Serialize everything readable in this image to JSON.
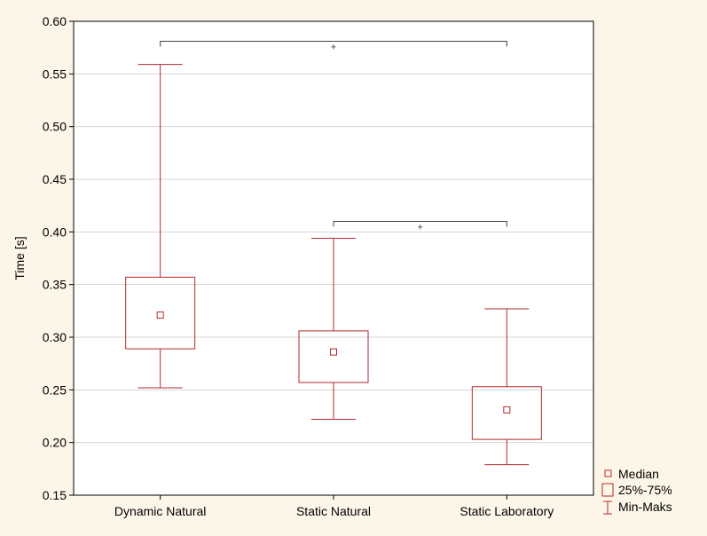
{
  "chart_data": {
    "type": "box",
    "ylabel": "Time [s]",
    "ylim": [
      0.15,
      0.6
    ],
    "yticks": [
      "0.15",
      "0.20",
      "0.25",
      "0.30",
      "0.35",
      "0.40",
      "0.45",
      "0.50",
      "0.55",
      "0.60"
    ],
    "grid": true,
    "categories": [
      "Dynamic Natural",
      "Static Natural",
      "Static Laboratory"
    ],
    "boxes": [
      {
        "category": "Dynamic Natural",
        "min": 0.252,
        "q1": 0.289,
        "median": 0.321,
        "q3": 0.357,
        "max": 0.559
      },
      {
        "category": "Static Natural",
        "min": 0.222,
        "q1": 0.257,
        "median": 0.286,
        "q3": 0.306,
        "max": 0.394
      },
      {
        "category": "Static Laboratory",
        "min": 0.179,
        "q1": 0.203,
        "median": 0.231,
        "q3": 0.253,
        "max": 0.327
      }
    ],
    "significance": [
      {
        "from": "Dynamic Natural",
        "to": "Static Laboratory",
        "y": 0.581,
        "mark": "+"
      },
      {
        "from": "Static Natural",
        "to": "Static Laboratory",
        "y": 0.41,
        "mark": "+"
      }
    ],
    "legend": {
      "position": "bottom-right",
      "items": [
        "Median",
        "25%-75%",
        "Min-Maks"
      ]
    },
    "colors": {
      "box": "#b22a2a",
      "axis": "#000000",
      "grid": "#d4d4d4",
      "plot_bg": "#ffffff",
      "page_bg": "#fdf6e8"
    }
  }
}
